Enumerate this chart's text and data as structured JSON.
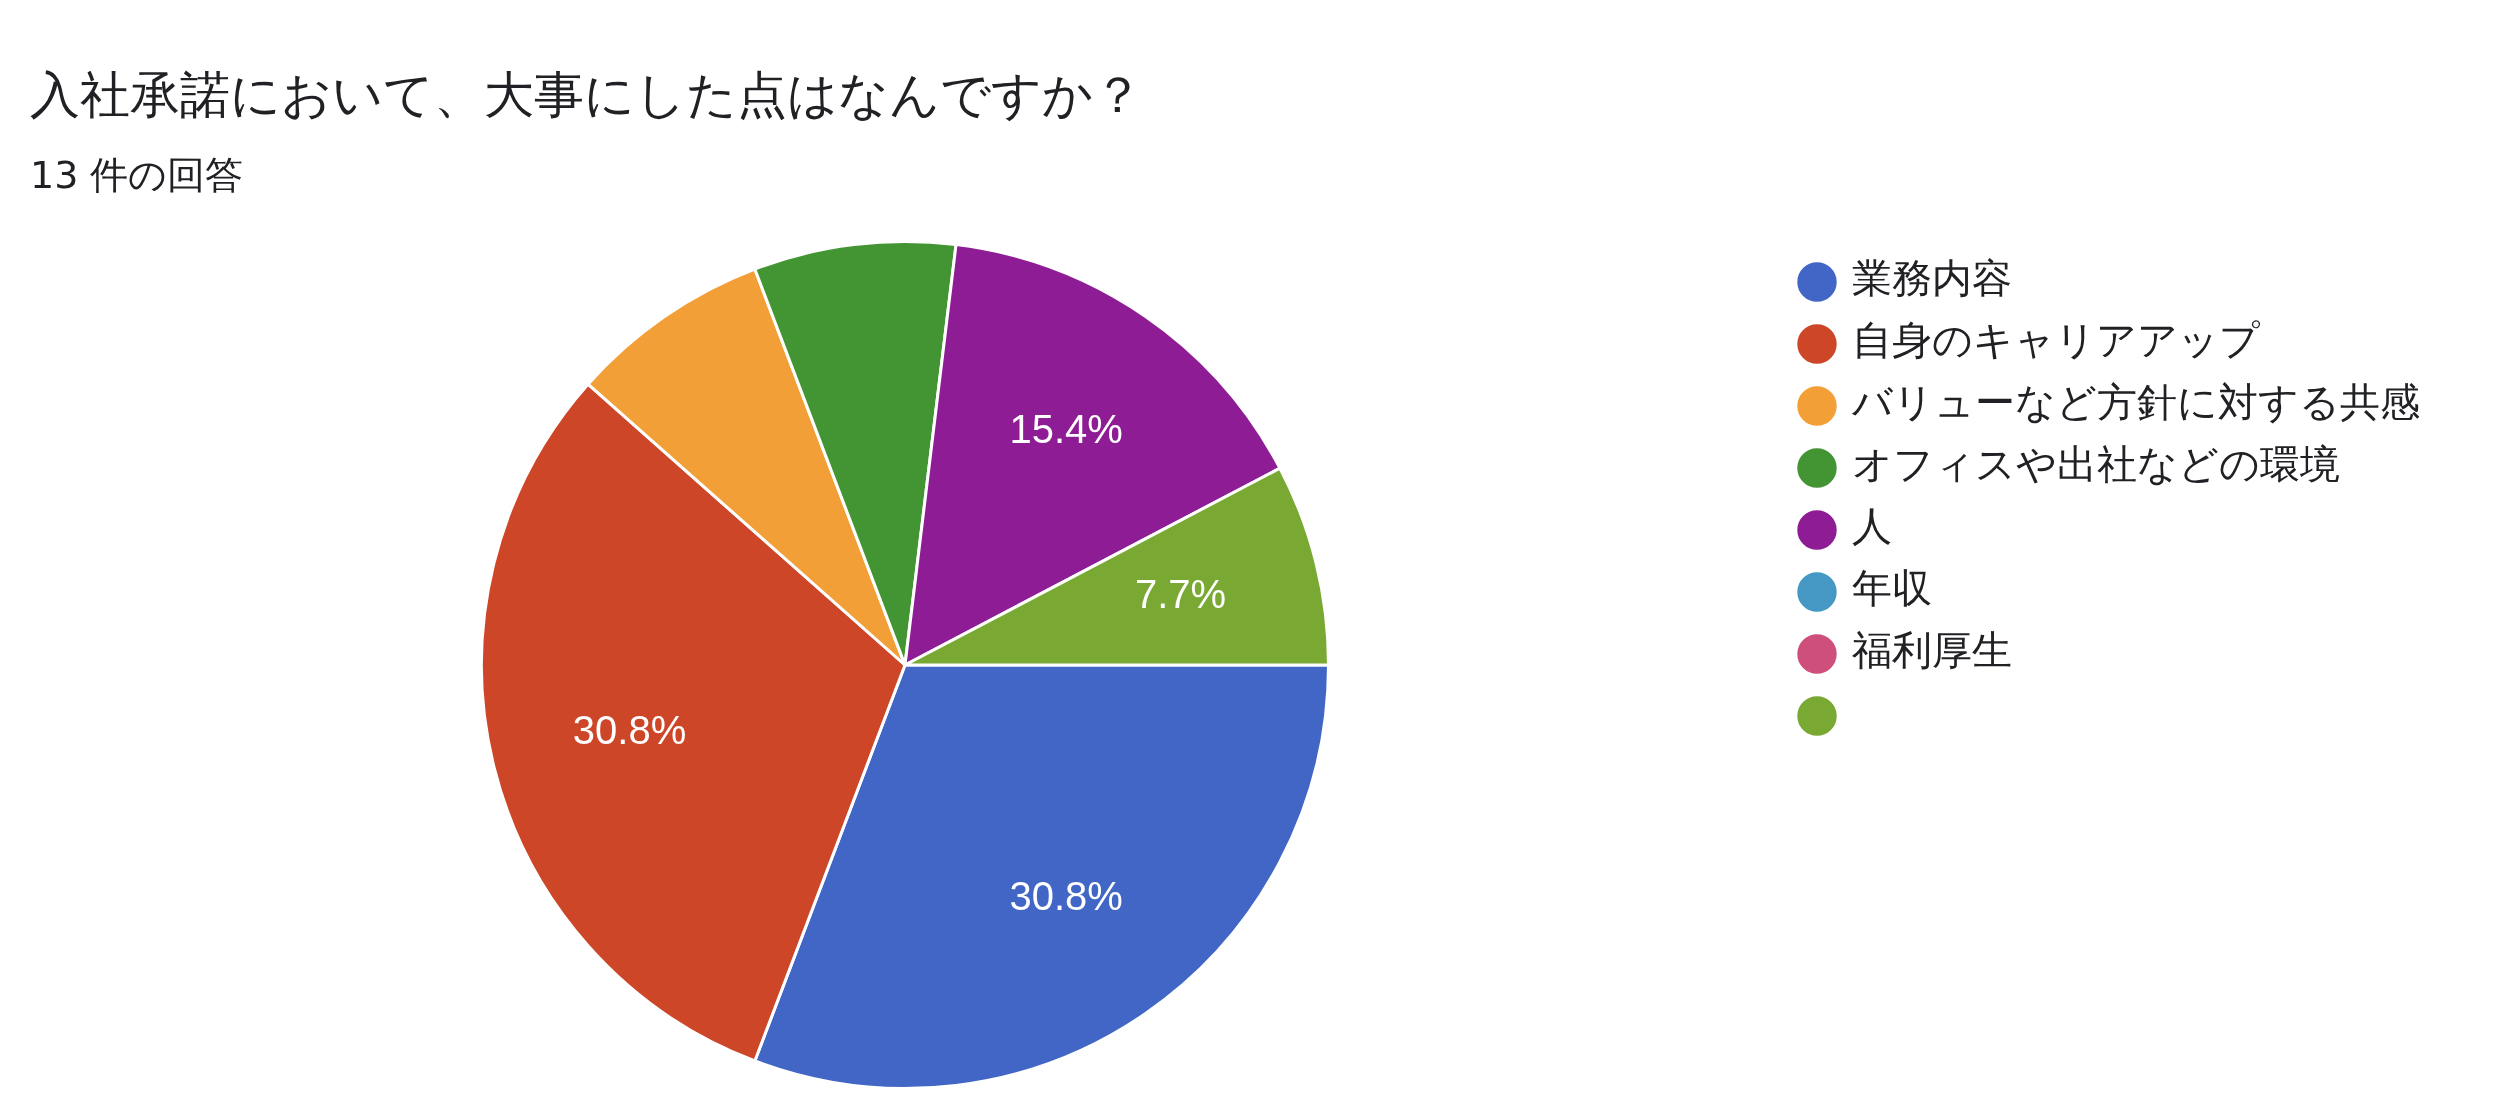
{
  "chart_data": {
    "type": "pie",
    "title": "入社承諾において、大事にした点はなんですか？",
    "subtitle": "13 件の回答",
    "categories": [
      "業務内容",
      "自身のキャリアアップ",
      "バリューなど方針に対する共感",
      "オフィスや出社などの環境",
      "人",
      "年収",
      "福利厚生",
      null
    ],
    "values": [
      30.8,
      30.8,
      7.7,
      7.7,
      15.4,
      0,
      0,
      7.7
    ],
    "colors": [
      "#4166c5",
      "#cc4627",
      "#f29f38",
      "#439533",
      "#8e1d95",
      "#4598c3",
      "#cf4f7c",
      "#79a833"
    ],
    "value_labels": [
      "30.8%",
      "30.8%",
      null,
      null,
      "15.4%",
      null,
      null,
      "7.7%"
    ],
    "legend": "right"
  }
}
